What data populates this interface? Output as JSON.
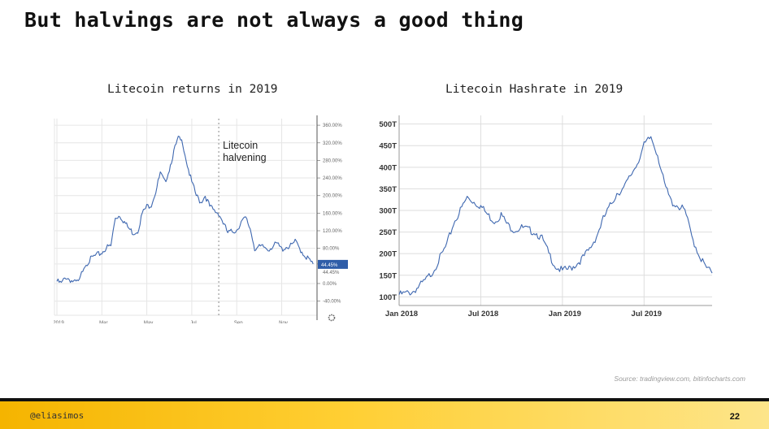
{
  "slide": {
    "title": "But halvings are not always a good thing",
    "source": "Source: tradingview.com, bitinfocharts.com",
    "footer_handle": "@eliasimos",
    "page_number": "22"
  },
  "colors": {
    "line": "#3f68b0",
    "grid": "#e6e6e6",
    "price_badge": "#2f5da8",
    "footer_start": "#f5b400",
    "footer_end": "#fde58a"
  },
  "icons": {
    "settings": "gear-icon"
  },
  "chart_data": [
    {
      "type": "line",
      "title": "Litecoin returns in 2019",
      "xlabel": "",
      "ylabel": "",
      "x_unit": "month of 2019 (1 = Jan 1)",
      "x_ticks": [
        {
          "label": "2019",
          "x": 1.0
        },
        {
          "label": "Mar",
          "x": 3.0
        },
        {
          "label": "May",
          "x": 5.0
        },
        {
          "label": "Jul",
          "x": 7.0
        },
        {
          "label": "Sep",
          "x": 9.0
        },
        {
          "label": "Nov",
          "x": 11.0
        }
      ],
      "y_ticks": [
        "360.00%",
        "320.00%",
        "280.00%",
        "240.00%",
        "200.00%",
        "160.00%",
        "120.00%",
        "80.00%",
        "44.45%",
        "0.00%",
        "-40.00%"
      ],
      "y_tick_values": [
        360,
        320,
        280,
        240,
        200,
        160,
        120,
        80,
        44.45,
        0,
        -40
      ],
      "xlim": [
        1.0,
        12.5
      ],
      "ylim": [
        -50,
        375
      ],
      "grid": true,
      "annotation": {
        "text_lines": [
          "Litecoin",
          "halvening"
        ],
        "x": 8.2
      },
      "last_value_label": "44.45%",
      "series": [
        {
          "x": [
            1.0,
            1.2,
            1.4,
            1.6,
            1.8,
            2.0,
            2.2,
            2.4,
            2.6,
            2.8,
            3.0,
            3.2,
            3.4,
            3.6,
            3.8,
            4.0,
            4.2,
            4.4,
            4.6,
            4.8,
            5.0,
            5.2,
            5.4,
            5.6,
            5.8,
            6.0,
            6.2,
            6.4,
            6.6,
            6.8,
            7.0,
            7.2,
            7.4,
            7.6,
            7.8,
            8.0,
            8.2,
            8.4,
            8.6,
            8.8,
            9.0,
            9.2,
            9.4,
            9.6,
            9.8,
            10.0,
            10.2,
            10.4,
            10.6,
            10.8,
            11.0,
            11.2,
            11.4,
            11.6,
            11.8,
            12.0,
            12.2,
            12.4
          ],
          "y": [
            5,
            0,
            15,
            8,
            2,
            5,
            40,
            50,
            60,
            65,
            70,
            82,
            85,
            150,
            155,
            140,
            125,
            115,
            120,
            160,
            175,
            180,
            210,
            250,
            230,
            260,
            300,
            330,
            320,
            270,
            230,
            200,
            185,
            200,
            175,
            165,
            160,
            138,
            115,
            118,
            122,
            140,
            148,
            125,
            80,
            82,
            83,
            78,
            85,
            90,
            78,
            83,
            85,
            95,
            80,
            65,
            55,
            44.45
          ]
        }
      ]
    },
    {
      "type": "line",
      "title": "Litecoin Hashrate in 2019",
      "xlabel": "",
      "ylabel": "",
      "x_unit": "months since Jan 2018",
      "x_ticks": [
        {
          "label": "Jan 2018",
          "x": 0
        },
        {
          "label": "Jul 2018",
          "x": 6
        },
        {
          "label": "Jan 2019",
          "x": 12
        },
        {
          "label": "Jul 2019",
          "x": 18
        }
      ],
      "y_ticks": [
        "500T",
        "450T",
        "400T",
        "350T",
        "300T",
        "250T",
        "200T",
        "150T",
        "100T"
      ],
      "y_tick_values": [
        500,
        450,
        400,
        350,
        300,
        250,
        200,
        150,
        100
      ],
      "xlim": [
        0,
        23.0
      ],
      "ylim": [
        80,
        520
      ],
      "grid": true,
      "series": [
        {
          "x": [
            0.0,
            0.5,
            1.0,
            1.5,
            2.0,
            2.5,
            3.0,
            3.5,
            4.0,
            4.5,
            5.0,
            5.5,
            6.0,
            6.5,
            7.0,
            7.5,
            8.0,
            8.5,
            9.0,
            9.5,
            10.0,
            10.5,
            11.0,
            11.5,
            12.0,
            12.5,
            13.0,
            13.5,
            14.0,
            14.5,
            15.0,
            15.5,
            16.0,
            16.5,
            17.0,
            17.5,
            18.0,
            18.5,
            19.0,
            19.5,
            20.0,
            20.5,
            21.0,
            21.5,
            22.0,
            22.5,
            23.0
          ],
          "y": [
            105,
            108,
            112,
            125,
            140,
            160,
            190,
            220,
            270,
            300,
            330,
            320,
            310,
            290,
            275,
            290,
            265,
            255,
            260,
            255,
            250,
            235,
            200,
            170,
            160,
            165,
            175,
            190,
            210,
            240,
            280,
            310,
            340,
            350,
            380,
            410,
            450,
            470,
            430,
            360,
            320,
            310,
            300,
            240,
            200,
            170,
            155
          ]
        }
      ]
    }
  ]
}
